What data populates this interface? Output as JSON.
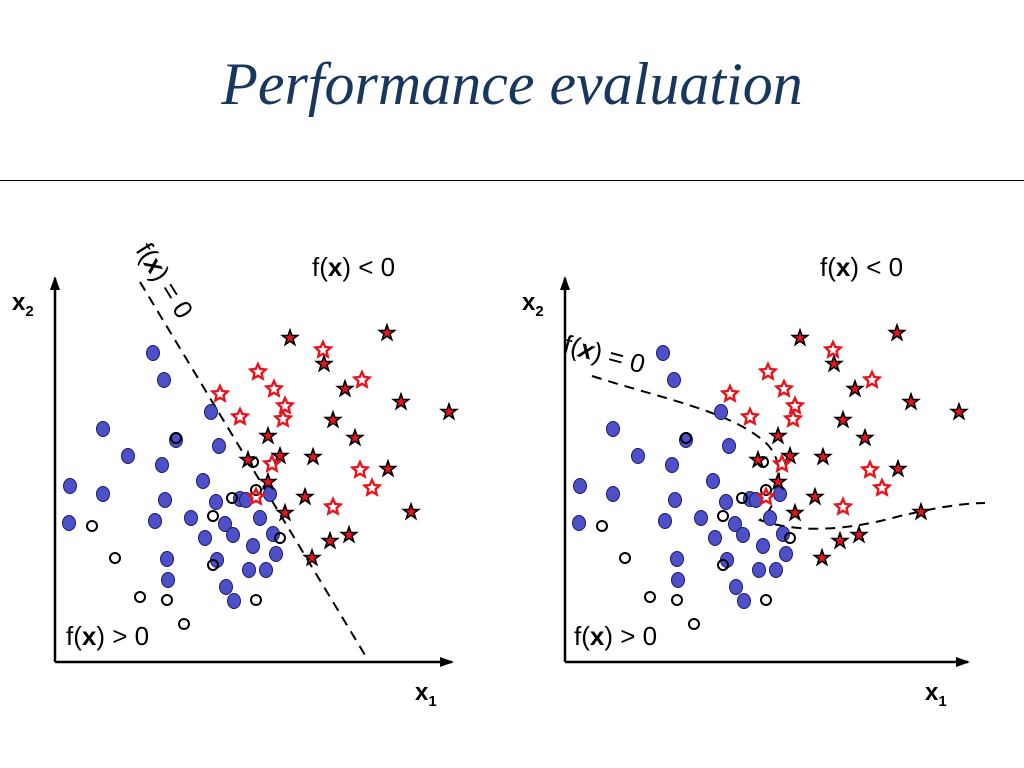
{
  "slide": {
    "title": "Performance evaluation"
  },
  "colors": {
    "title": "#17375e",
    "blue_point_fill": "#4e50c8",
    "blue_point_stroke": "#1a1a6e",
    "red_star": "#e8141e",
    "ink": "#000000"
  },
  "panels": [
    {
      "id": "left",
      "labels": {
        "x_axis": "x",
        "x_axis_sub": "1",
        "y_axis": "x",
        "y_axis_sub": "2",
        "neg_region_pre": "f(",
        "neg_region_x": "x",
        "neg_region_post": ") < 0",
        "pos_region_pre": "f(",
        "pos_region_x": "x",
        "pos_region_post": ") > 0",
        "boundary_pre": "f(",
        "boundary_x": "x",
        "boundary_post": ") = 0"
      }
    },
    {
      "id": "right",
      "labels": {
        "x_axis": "x",
        "x_axis_sub": "1",
        "y_axis": "x",
        "y_axis_sub": "2",
        "neg_region_pre": "f(",
        "neg_region_x": "x",
        "neg_region_post": ") < 0",
        "pos_region_pre": "f(",
        "pos_region_x": "x",
        "pos_region_post": ") > 0",
        "boundary_pre": "f(",
        "boundary_x": "x",
        "boundary_post": ") = 0"
      }
    }
  ]
}
